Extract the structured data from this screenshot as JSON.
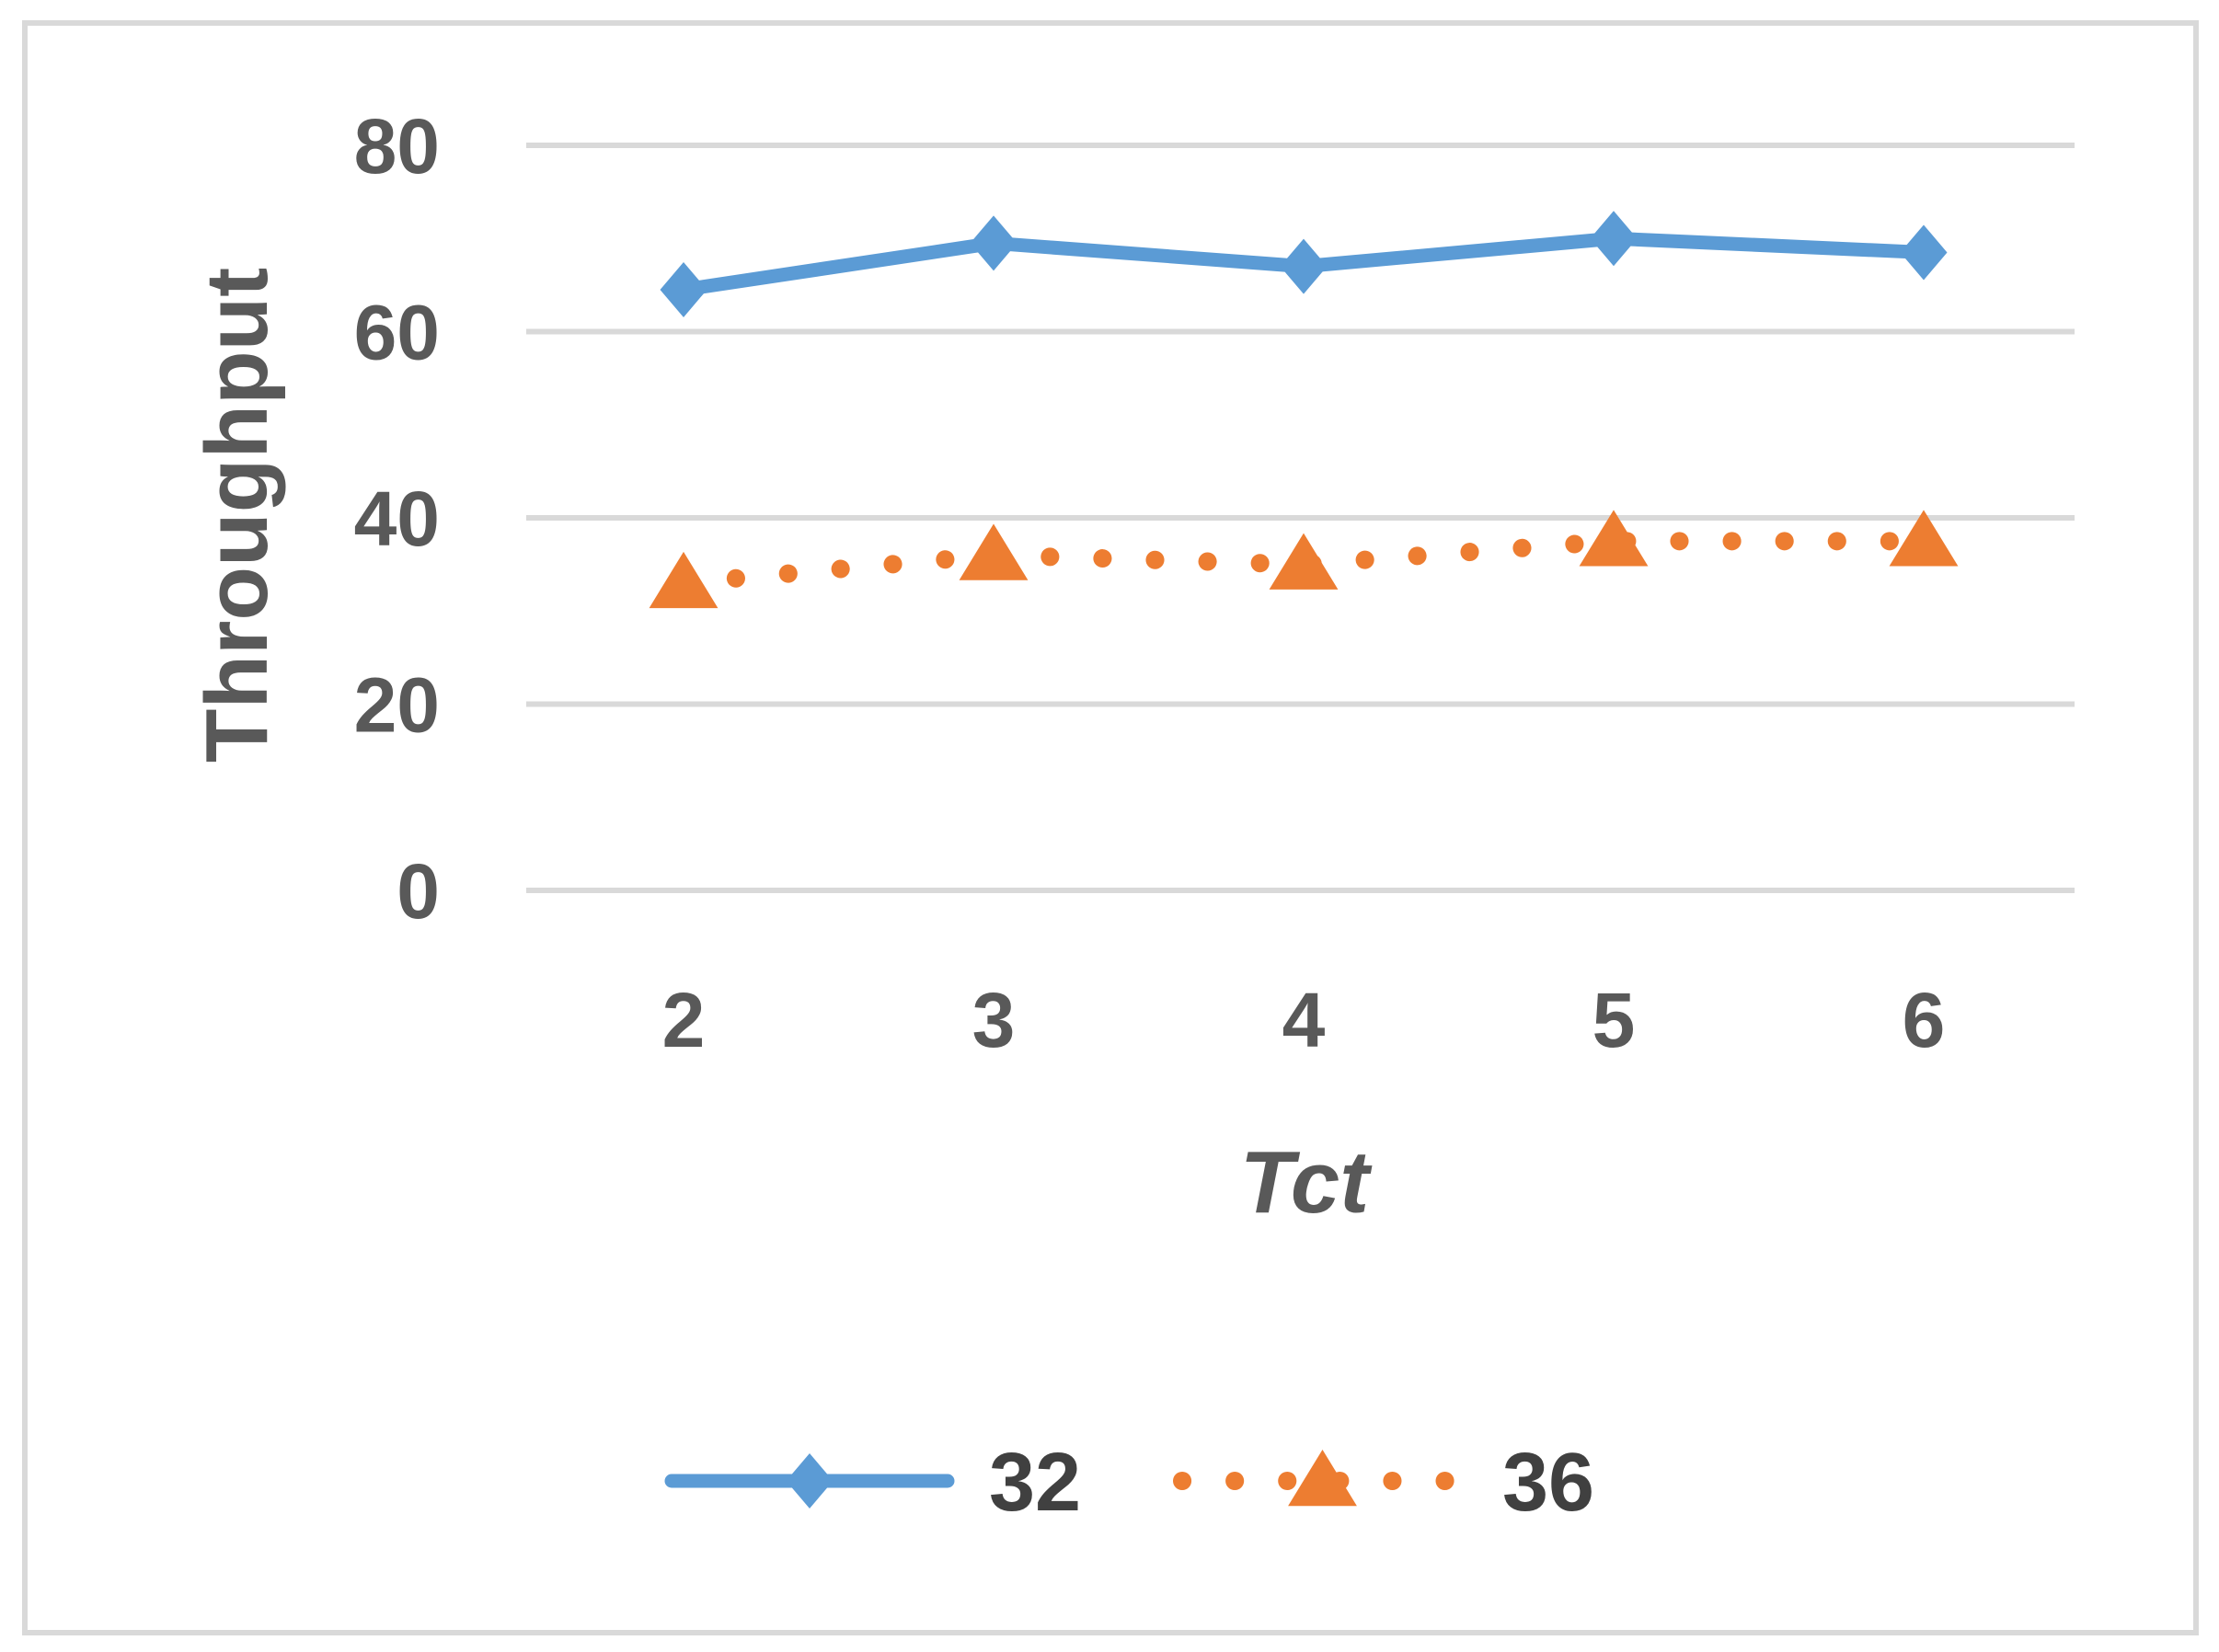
{
  "chart_data": {
    "type": "line",
    "x": [
      2,
      3,
      4,
      5,
      6
    ],
    "xlabel": "Tct",
    "ylabel": "Throughput",
    "ylim": [
      0,
      80
    ],
    "yticks": [
      0,
      20,
      40,
      60,
      80
    ],
    "grid": true,
    "legend_position": "bottom",
    "series": [
      {
        "name": "32",
        "values": [
          64.5,
          69.5,
          67,
          70,
          68.5
        ],
        "color": "#5b9bd5",
        "line_style": "solid",
        "marker": "diamond"
      },
      {
        "name": "36",
        "values": [
          33,
          36,
          35,
          37.5,
          37.5
        ],
        "color": "#ed7d31",
        "line_style": "dotted",
        "marker": "triangle"
      }
    ]
  }
}
